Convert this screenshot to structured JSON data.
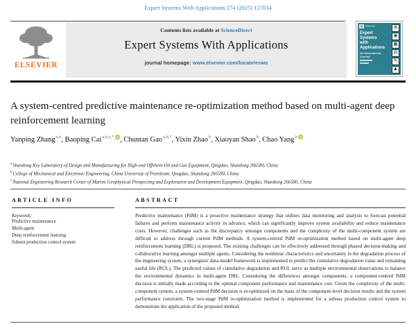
{
  "colors": {
    "link_blue": "#2f7bb6",
    "elsevier_orange": "#e8731d",
    "cover_teal": "#2a7d8c",
    "orcid_green": "#a6ce39"
  },
  "citation": "Expert Systems With Applications 274 (2025) 127034",
  "banner": {
    "contents_prefix": "Contents lists available at ",
    "contents_link": "ScienceDirect",
    "journal_name": "Expert Systems With Applications",
    "homepage_prefix": "journal homepage: ",
    "homepage_url": "www.elsevier.com/locate/eswa",
    "elsevier_wordmark": "ELSEVIER"
  },
  "cover": {
    "title_words": [
      "Expert",
      "Systems",
      "with",
      "Applications"
    ],
    "subtitle_words": [
      "An International",
      "Journal"
    ],
    "tile_glyphs": [
      "⚙",
      "◉",
      "▦",
      "⚖",
      "✎",
      "♟"
    ],
    "mini_glyph": "▤"
  },
  "article": {
    "title": "A system-centred predictive maintenance re-optimization method based on multi-agent deep reinforcement learning",
    "authors": [
      {
        "name": "Yanping Zhang",
        "sup": "a,b",
        "orcid": false
      },
      {
        "name": "Baoping Cai",
        "sup": "a,b,c,*",
        "orcid": true
      },
      {
        "name": "Chuntan Gao",
        "sup": "a,b,*",
        "orcid": false
      },
      {
        "name": "Yixin Zhao",
        "sup": "b",
        "orcid": false
      },
      {
        "name": "Xiaoyan Shao",
        "sup": "b",
        "orcid": false
      },
      {
        "name": "Chao Yang",
        "sup": "b",
        "orcid": true
      }
    ],
    "affiliations": [
      {
        "sup": "a",
        "text": "Shandong Key Laboratory of Design and Manufacturing for High-end Offshore Oil and Gas Equipment, Qingdao, Shandong 266580, China"
      },
      {
        "sup": "b",
        "text": "College of Mechanical and Electronic Engineering, China University of Petroleum, Qingdao, Shandong 266580, China"
      },
      {
        "sup": "c",
        "text": "National Engineering Research Center of Marine Geophysical Prospecting and Exploration and Development Equipment, Qingdao, Shandong 266580, China"
      }
    ]
  },
  "article_info": {
    "heading": "ARTICLE INFO",
    "keywords_label": "Keywords:",
    "keywords": [
      "Predictive maintenance",
      "Multi-agent",
      "Deep reinforcement learning",
      "Subsea production control system"
    ]
  },
  "abstract": {
    "heading": "ABSTRACT",
    "text": "Predictive maintenance (PdM) is a proactive maintenance strategy that utilises data monitoring and analysis to forecast potential failures and perform maintenance activity in advance, which can significantly improve system availability and reduce maintenance costs. However, challenges such as the discrepancy amongst components and the complexity of the multi-component system are difficult to address through current PdM methods. A system-centred PdM re-optimization method based on multi-agent deep reinforcement learning (DRL) is proposed. The existing challenges can be effectively addressed through phased decision-making and collaborative learning amongst multiple agents. Considering the nonlinear characteristics and uncertainty in the degradation process of the engineering system, a synergistic data-model framework is implemented to predict the cumulative degradation value and remaining useful life (RUL). The predicted values of cumulative degradation and RUL serve as multiple environmental observations to balance the environmental dynamics in multi-agent DRL. Considering the differences amongst components, a component-centred PdM decision is initially made according to the optimal component performance and maintenance cost. Given the complexity of the multi-component system, a system-centred PdM decision is re-optimized on the basis of the component-level decision results and the system performance constraint. The two-stage PdM re-optimization method is implemented for a subsea production control system to demonstrate the application of the proposed method."
  }
}
